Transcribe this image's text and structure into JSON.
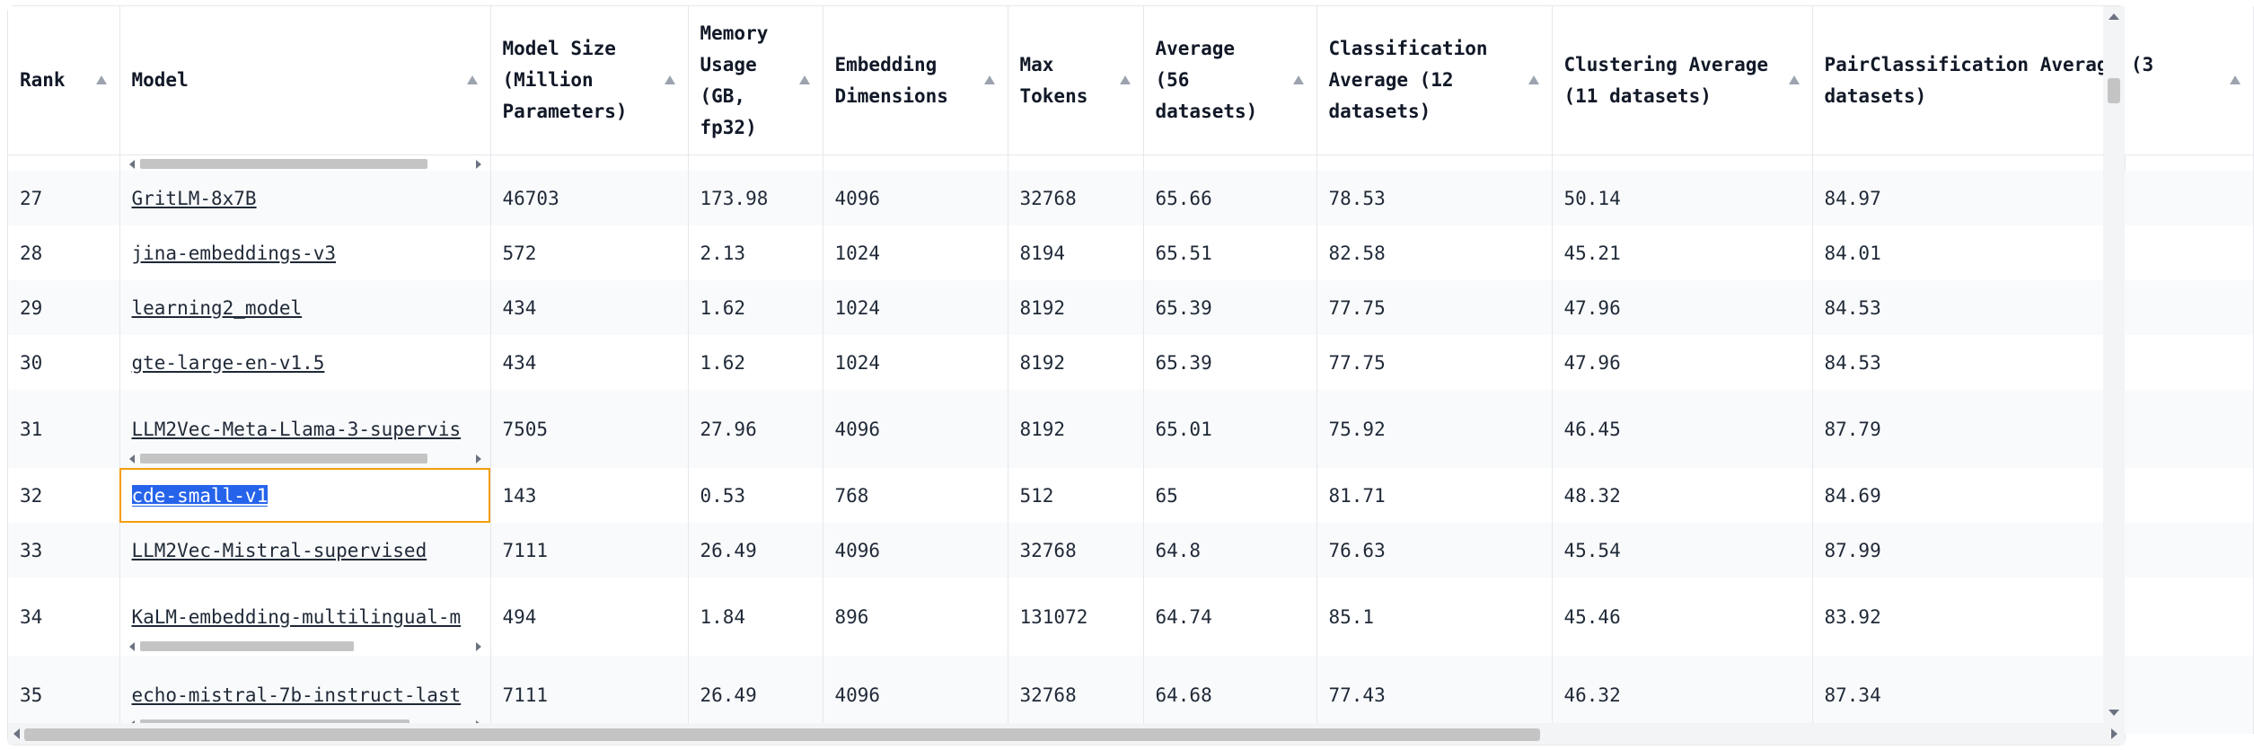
{
  "table": {
    "headers": [
      "Rank",
      "Model",
      "Model Size (Million Parameters)",
      "Memory Usage (GB, fp32)",
      "Embedding Dimensions",
      "Max Tokens",
      "Average (56 datasets)",
      "Classification Average (12 datasets)",
      "Clustering Average (11 datasets)",
      "PairClassification Average (3 datasets)"
    ],
    "rows": [
      {
        "rank": "27",
        "model": "GritLM-8x7B",
        "size": "46703",
        "memory": "173.98",
        "dims": "4096",
        "tokens": "32768",
        "avg": "65.66",
        "cls": "78.53",
        "clu": "50.14",
        "pair": "84.97"
      },
      {
        "rank": "28",
        "model": "jina-embeddings-v3",
        "size": "572",
        "memory": "2.13",
        "dims": "1024",
        "tokens": "8194",
        "avg": "65.51",
        "cls": "82.58",
        "clu": "45.21",
        "pair": "84.01"
      },
      {
        "rank": "29",
        "model": "learning2_model",
        "size": "434",
        "memory": "1.62",
        "dims": "1024",
        "tokens": "8192",
        "avg": "65.39",
        "cls": "77.75",
        "clu": "47.96",
        "pair": "84.53"
      },
      {
        "rank": "30",
        "model": "gte-large-en-v1.5",
        "size": "434",
        "memory": "1.62",
        "dims": "1024",
        "tokens": "8192",
        "avg": "65.39",
        "cls": "77.75",
        "clu": "47.96",
        "pair": "84.53"
      },
      {
        "rank": "31",
        "model": "LLM2Vec-Meta-Llama-3-supervis",
        "size": "7505",
        "memory": "27.96",
        "dims": "4096",
        "tokens": "8192",
        "avg": "65.01",
        "cls": "75.92",
        "clu": "46.45",
        "pair": "87.79"
      },
      {
        "rank": "32",
        "model": "cde-small-v1",
        "size": "143",
        "memory": "0.53",
        "dims": "768",
        "tokens": "512",
        "avg": "65",
        "cls": "81.71",
        "clu": "48.32",
        "pair": "84.69"
      },
      {
        "rank": "33",
        "model": "LLM2Vec-Mistral-supervised",
        "size": "7111",
        "memory": "26.49",
        "dims": "4096",
        "tokens": "32768",
        "avg": "64.8",
        "cls": "76.63",
        "clu": "45.54",
        "pair": "87.99"
      },
      {
        "rank": "34",
        "model": "KaLM-embedding-multilingual-m",
        "size": "494",
        "memory": "1.84",
        "dims": "896",
        "tokens": "131072",
        "avg": "64.74",
        "cls": "85.1",
        "clu": "45.46",
        "pair": "83.92"
      },
      {
        "rank": "35",
        "model": "echo-mistral-7b-instruct-last",
        "size": "7111",
        "memory": "26.49",
        "dims": "4096",
        "tokens": "32768",
        "avg": "64.68",
        "cls": "77.43",
        "clu": "46.32",
        "pair": "87.34"
      }
    ]
  }
}
